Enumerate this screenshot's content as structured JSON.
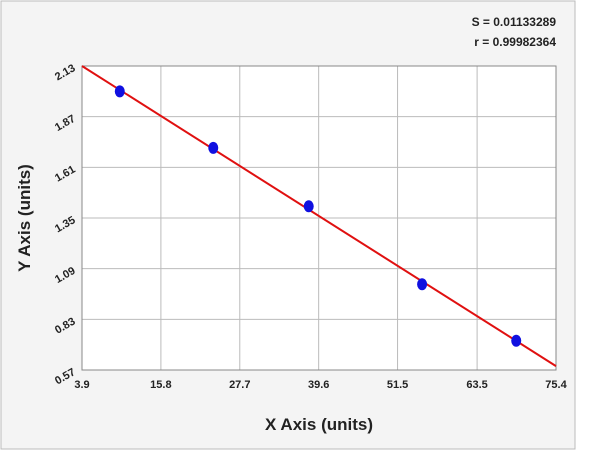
{
  "chart_data": {
    "type": "scatter",
    "annotations": [
      "S = 0.01133289",
      "r = 0.99982364"
    ],
    "x_label": "X Axis (units)",
    "y_label": "Y Axis (units)",
    "series": [
      {
        "color": "#1010e0",
        "x": [
          9.6,
          23.7,
          38.1,
          55.2,
          69.4
        ],
        "values": [
          2.0,
          1.71,
          1.41,
          1.01,
          0.72
        ]
      }
    ],
    "fit_line": {
      "color": "#e01010",
      "x": [
        3.9,
        75.4
      ],
      "values": [
        2.13,
        0.59
      ]
    },
    "xlim": [
      3.9,
      75.4
    ],
    "xticks": [
      3.9,
      15.8,
      27.7,
      39.6,
      51.5,
      63.5,
      75.4
    ],
    "ylim": [
      0.57,
      2.13
    ],
    "yticks": [
      0.57,
      0.83,
      1.09,
      1.35,
      1.61,
      1.87,
      2.13
    ],
    "grid": true
  }
}
